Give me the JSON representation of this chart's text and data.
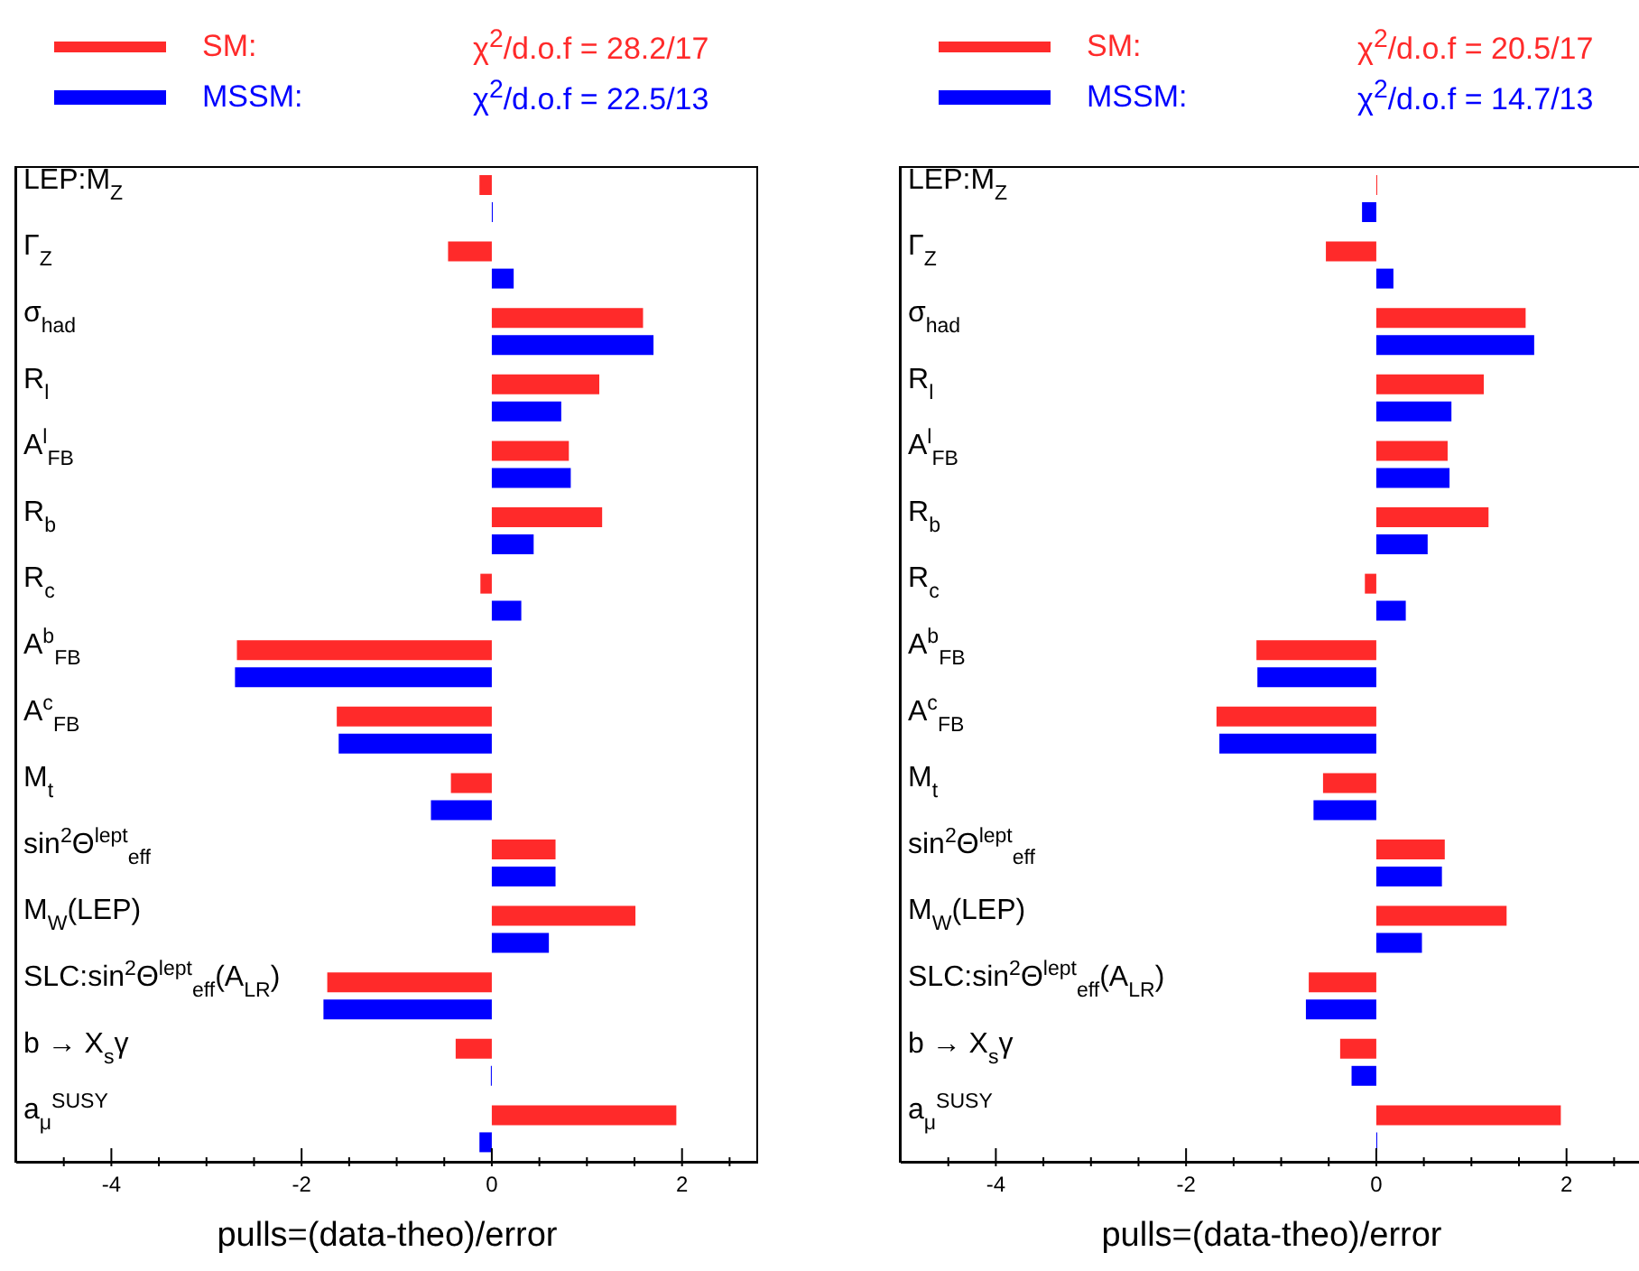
{
  "chart_data": [
    {
      "type": "bar",
      "orientation": "horizontal",
      "legend": "top",
      "categories": [
        "LEP:M$_{Z}$",
        "Γ$_{Z}$",
        "σ$_{had}$",
        "R$_{l}$",
        "A$^{l}$$_{FB}$",
        "R$_{b}$",
        "R$_{c}$",
        "A$^{b}$$_{FB}$",
        "A$^{c}$$_{FB}$",
        "M$_{t}$",
        "sin$^{2}$Θ$^{lept}$$_{eff}$",
        "M$_{W}$(LEP)",
        "SLC:sin$^{2}$Θ$^{lept}$$_{eff}$(A$_{LR}$)",
        "b → X$_{s}$γ",
        "a$_{μ}$$^{SUSY}$"
      ],
      "series": [
        {
          "name": "SM:",
          "color": "#ff2a2a",
          "values": [
            -0.13,
            -0.46,
            1.59,
            1.13,
            0.81,
            1.16,
            -0.12,
            -2.68,
            -1.63,
            -0.43,
            0.67,
            1.51,
            -1.73,
            -0.38,
            1.94
          ]
        },
        {
          "name": "MSSM:",
          "color": "#0000ff",
          "values": [
            0.01,
            0.23,
            1.7,
            0.73,
            0.83,
            0.44,
            0.31,
            -2.7,
            -1.61,
            -0.64,
            0.67,
            0.6,
            -1.77,
            -0.01,
            -0.13
          ]
        }
      ],
      "annotations": [
        "χ$^{2}$/d.o.f = 28.2/17",
        "χ$^{2}$/d.o.f = 22.5/13"
      ],
      "xlabel": "pulls=(data-theo)/error",
      "xlim": [
        -5,
        2.8
      ],
      "xticks": [
        {
          "value": -4.5,
          "label": null
        },
        -4,
        {
          "value": -3.5,
          "label": null
        },
        {
          "value": -3,
          "label": null
        },
        {
          "value": -2.5,
          "label": null
        },
        -2,
        {
          "value": -1.5,
          "label": null
        },
        {
          "value": -1,
          "label": null
        },
        {
          "value": -0.5,
          "label": null
        },
        0,
        {
          "value": 0.5,
          "label": null
        },
        {
          "value": 1,
          "label": null
        },
        {
          "value": 1.5,
          "label": null
        },
        2,
        {
          "value": 2.5,
          "label": null
        }
      ]
    },
    {
      "type": "bar",
      "orientation": "horizontal",
      "legend": "top",
      "categories": [
        "LEP:M$_{Z}$",
        "Γ$_{Z}$",
        "σ$_{had}$",
        "R$_{l}$",
        "A$^{l}$$_{FB}$",
        "R$_{b}$",
        "R$_{c}$",
        "A$^{b}$$_{FB}$",
        "A$^{c}$$_{FB}$",
        "M$_{t}$",
        "sin$^{2}$Θ$^{lept}$$_{eff}$",
        "M$_{W}$(LEP)",
        "SLC:sin$^{2}$Θ$^{lept}$$_{eff}$(A$_{LR}$)",
        "b → X$_{s}$γ",
        "a$_{μ}$$^{SUSY}$"
      ],
      "series": [
        {
          "name": "SM:",
          "color": "#ff2a2a",
          "values": [
            0.01,
            -0.53,
            1.57,
            1.13,
            0.75,
            1.18,
            -0.12,
            -1.26,
            -1.68,
            -0.56,
            0.72,
            1.37,
            -0.71,
            -0.38,
            1.94
          ]
        },
        {
          "name": "MSSM:",
          "color": "#0000ff",
          "values": [
            -0.15,
            0.18,
            1.66,
            0.79,
            0.77,
            0.54,
            0.31,
            -1.25,
            -1.65,
            -0.66,
            0.69,
            0.48,
            -0.74,
            -0.26,
            0.01
          ]
        }
      ],
      "annotations": [
        "χ$^{2}$/d.o.f = 20.5/17",
        "χ$^{2}$/d.o.f = 14.7/13"
      ],
      "xlabel": "pulls=(data-theo)/error",
      "xlim": [
        -5,
        2.8
      ],
      "xticks": [
        {
          "value": -4.5,
          "label": null
        },
        -4,
        {
          "value": -3.5,
          "label": null
        },
        {
          "value": -3,
          "label": null
        },
        {
          "value": -2.5,
          "label": null
        },
        -2,
        {
          "value": -1.5,
          "label": null
        },
        {
          "value": -1,
          "label": null
        },
        {
          "value": -0.5,
          "label": null
        },
        0,
        {
          "value": 0.5,
          "label": null
        },
        {
          "value": 1,
          "label": null
        },
        {
          "value": 1.5,
          "label": null
        },
        2,
        {
          "value": 2.5,
          "label": null
        }
      ]
    }
  ]
}
